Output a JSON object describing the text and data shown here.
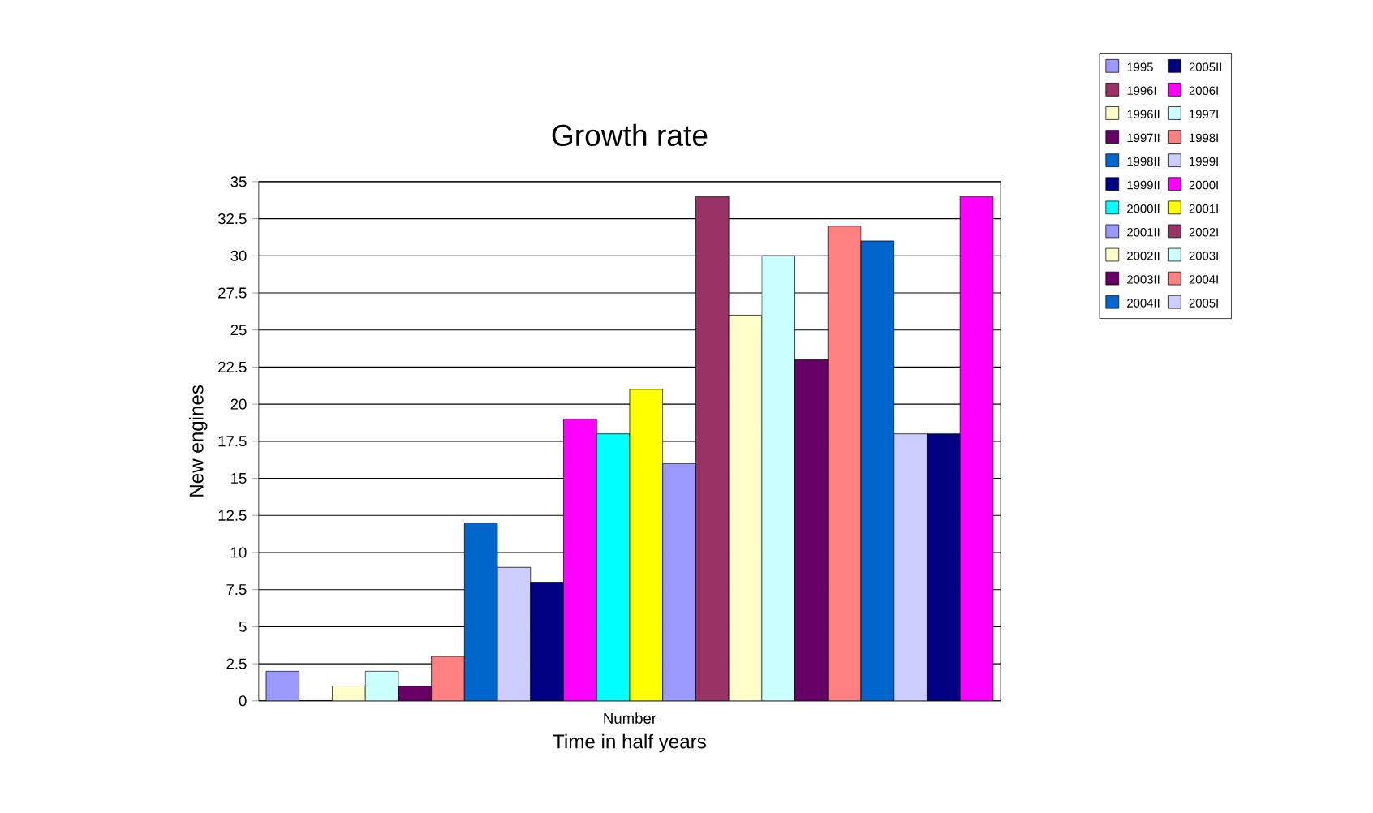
{
  "chart_data": {
    "type": "bar",
    "title": "Growth rate",
    "xlabel": "Time in half years",
    "ylabel": "New engines",
    "categories": [
      "Number"
    ],
    "ylim": [
      0,
      35
    ],
    "yticks": [
      0,
      2.5,
      5,
      7.5,
      10,
      12.5,
      15,
      17.5,
      20,
      22.5,
      25,
      27.5,
      30,
      32.5,
      35
    ],
    "grid": "y",
    "legend": "right",
    "series": [
      {
        "name": "1995",
        "color": "#9999ff",
        "values": [
          2
        ]
      },
      {
        "name": "1996I",
        "color": "#993366",
        "values": [
          0
        ]
      },
      {
        "name": "1996II",
        "color": "#ffffcc",
        "values": [
          1
        ]
      },
      {
        "name": "1997I",
        "color": "#ccffff",
        "values": [
          2
        ]
      },
      {
        "name": "1997II",
        "color": "#660066",
        "values": [
          1
        ]
      },
      {
        "name": "1998I",
        "color": "#ff8080",
        "values": [
          3
        ]
      },
      {
        "name": "1998II",
        "color": "#0066cc",
        "values": [
          12
        ]
      },
      {
        "name": "1999I",
        "color": "#ccccff",
        "values": [
          9
        ]
      },
      {
        "name": "1999II",
        "color": "#000080",
        "values": [
          8
        ]
      },
      {
        "name": "2000I",
        "color": "#ff00ff",
        "values": [
          19
        ]
      },
      {
        "name": "2000II",
        "color": "#00ffff",
        "values": [
          18
        ]
      },
      {
        "name": "2001I",
        "color": "#ffff00",
        "values": [
          21
        ]
      },
      {
        "name": "2001II",
        "color": "#9999ff",
        "values": [
          16
        ]
      },
      {
        "name": "2002I",
        "color": "#993366",
        "values": [
          34
        ]
      },
      {
        "name": "2002II",
        "color": "#ffffcc",
        "values": [
          26
        ]
      },
      {
        "name": "2003I",
        "color": "#ccffff",
        "values": [
          30
        ]
      },
      {
        "name": "2003II",
        "color": "#660066",
        "values": [
          23
        ]
      },
      {
        "name": "2004I",
        "color": "#ff8080",
        "values": [
          32
        ]
      },
      {
        "name": "2004II",
        "color": "#0066cc",
        "values": [
          31
        ]
      },
      {
        "name": "2005I",
        "color": "#ccccff",
        "values": [
          18
        ]
      },
      {
        "name": "2005II",
        "color": "#000080",
        "values": [
          18
        ]
      },
      {
        "name": "2006I",
        "color": "#ff00ff",
        "values": [
          34
        ]
      }
    ]
  }
}
